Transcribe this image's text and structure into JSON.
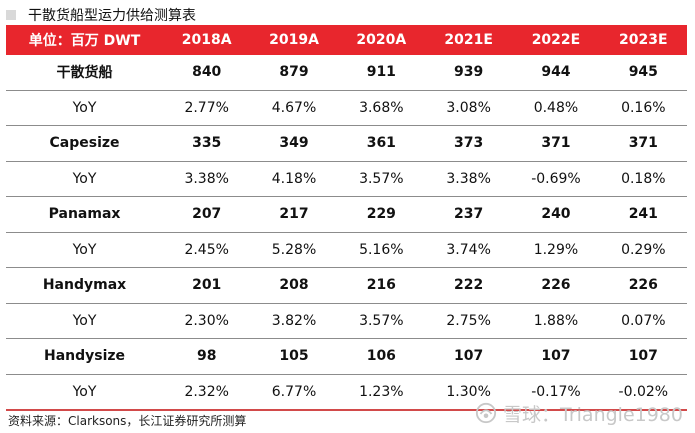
{
  "title": "干散货船型运力供给测算表",
  "table": {
    "unit_header": "单位：百万 DWT",
    "years": [
      "2018A",
      "2019A",
      "2020A",
      "2021E",
      "2022E",
      "2023E"
    ],
    "rows": [
      {
        "label": "干散货船",
        "values": [
          "840",
          "879",
          "911",
          "939",
          "944",
          "945"
        ],
        "type": "main"
      },
      {
        "label": "YoY",
        "values": [
          "2.77%",
          "4.67%",
          "3.68%",
          "3.08%",
          "0.48%",
          "0.16%"
        ],
        "type": "yoy"
      },
      {
        "label": "Capesize",
        "values": [
          "335",
          "349",
          "361",
          "373",
          "371",
          "371"
        ],
        "type": "main"
      },
      {
        "label": "YoY",
        "values": [
          "3.38%",
          "4.18%",
          "3.57%",
          "3.38%",
          "-0.69%",
          "0.18%"
        ],
        "type": "yoy"
      },
      {
        "label": "Panamax",
        "values": [
          "207",
          "217",
          "229",
          "237",
          "240",
          "241"
        ],
        "type": "main"
      },
      {
        "label": "YoY",
        "values": [
          "2.45%",
          "5.28%",
          "5.16%",
          "3.74%",
          "1.29%",
          "0.29%"
        ],
        "type": "yoy"
      },
      {
        "label": "Handymax",
        "values": [
          "201",
          "208",
          "216",
          "222",
          "226",
          "226"
        ],
        "type": "main"
      },
      {
        "label": "YoY",
        "values": [
          "2.30%",
          "3.82%",
          "3.57%",
          "2.75%",
          "1.88%",
          "0.07%"
        ],
        "type": "yoy"
      },
      {
        "label": "Handysize",
        "values": [
          "98",
          "105",
          "106",
          "107",
          "107",
          "107"
        ],
        "type": "main"
      },
      {
        "label": "YoY",
        "values": [
          "2.32%",
          "6.77%",
          "1.23%",
          "1.30%",
          "-0.17%",
          "-0.02%"
        ],
        "type": "yoy"
      }
    ]
  },
  "source": "资料来源：Clarksons，长江证券研究所测算",
  "watermark": "雪球：Triangle1980",
  "colors": {
    "header_bg": "#e8262d",
    "header_text": "#ffffff",
    "row_divider": "#8c8c8c",
    "bottom_rule": "#d24a4a"
  }
}
